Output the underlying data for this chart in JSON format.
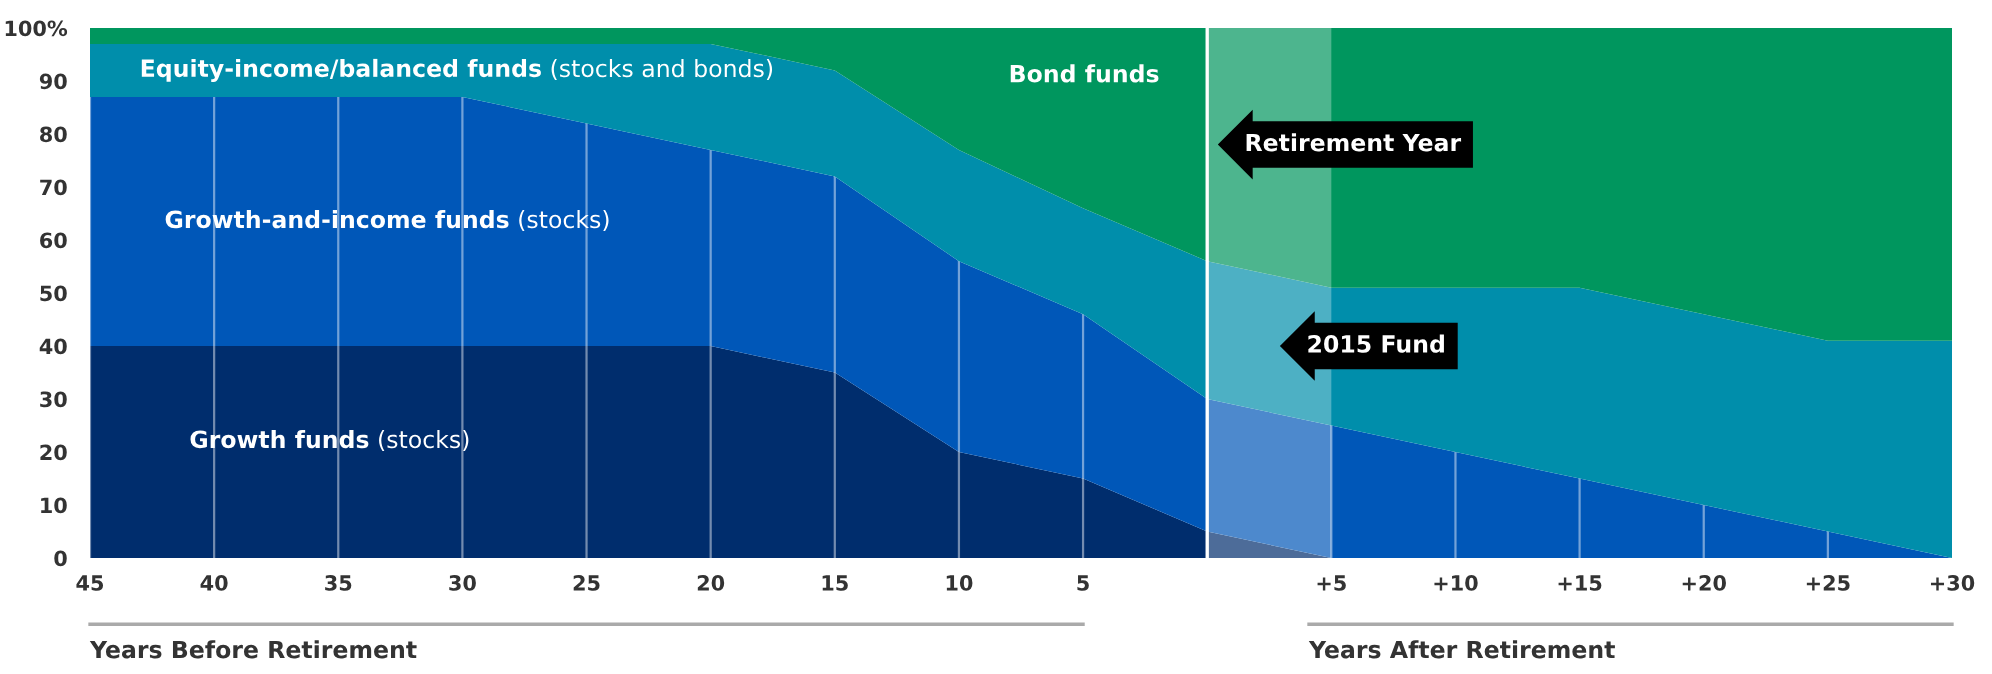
{
  "chart_data": {
    "type": "area",
    "stacked": true,
    "x": [
      -45,
      -40,
      -35,
      -30,
      -25,
      -20,
      -15,
      -10,
      -5,
      0,
      5,
      10,
      15,
      20,
      25,
      30
    ],
    "series": [
      {
        "name": "Growth funds (stocks)",
        "color": "#002d6d",
        "values": [
          40,
          40,
          40,
          40,
          40,
          40,
          35,
          20,
          15,
          5,
          0,
          0,
          0,
          0,
          0,
          0
        ]
      },
      {
        "name": "Growth-and-income funds (stocks)",
        "color": "#0057b8",
        "values": [
          47,
          47,
          47,
          47,
          42,
          37,
          37,
          36,
          31,
          25,
          25,
          20,
          15,
          10,
          5,
          0
        ]
      },
      {
        "name": "Equity-income/balanced funds (stocks and bonds)",
        "color": "#008eab",
        "values": [
          10,
          10,
          10,
          10,
          15,
          20,
          20,
          21,
          20,
          26,
          26,
          31,
          36,
          36,
          36,
          41
        ]
      },
      {
        "name": "Bond funds",
        "color": "#00965e",
        "values": [
          3,
          3,
          3,
          3,
          3,
          3,
          8,
          23,
          34,
          44,
          49,
          49,
          49,
          54,
          59,
          59
        ]
      }
    ],
    "xlim": [
      -45,
      30
    ],
    "xticks": [
      {
        "value": -45,
        "label": "45"
      },
      {
        "value": -40,
        "label": "40"
      },
      {
        "value": -35,
        "label": "35"
      },
      {
        "value": -30,
        "label": "30"
      },
      {
        "value": -25,
        "label": "25"
      },
      {
        "value": -20,
        "label": "20"
      },
      {
        "value": -15,
        "label": "15"
      },
      {
        "value": -10,
        "label": "10"
      },
      {
        "value": -5,
        "label": "5"
      },
      {
        "value": 0,
        "label": null
      },
      {
        "value": 5,
        "label": "+5"
      },
      {
        "value": 10,
        "label": "+10"
      },
      {
        "value": 15,
        "label": "+15"
      },
      {
        "value": 20,
        "label": "+20"
      },
      {
        "value": 25,
        "label": "+25"
      },
      {
        "value": 30,
        "label": "+30"
      }
    ],
    "ylim": [
      0,
      100
    ],
    "yticks": [
      0,
      10,
      20,
      30,
      40,
      50,
      60,
      70,
      80,
      90,
      {
        "value": 100,
        "label": "100%"
      }
    ],
    "xlabel": "Years Before Retirement",
    "annotations": [
      "Years After Retirement"
    ],
    "ref_lines": [
      {
        "axis": "x",
        "value": 0,
        "label": "Retirement Year",
        "color": "#ffffff"
      }
    ],
    "bands": [
      {
        "axis": "x",
        "from": 0,
        "to": 5,
        "label": "2015 Fund",
        "color": "#ffffff"
      }
    ],
    "grid": "x",
    "legend": false
  }
}
